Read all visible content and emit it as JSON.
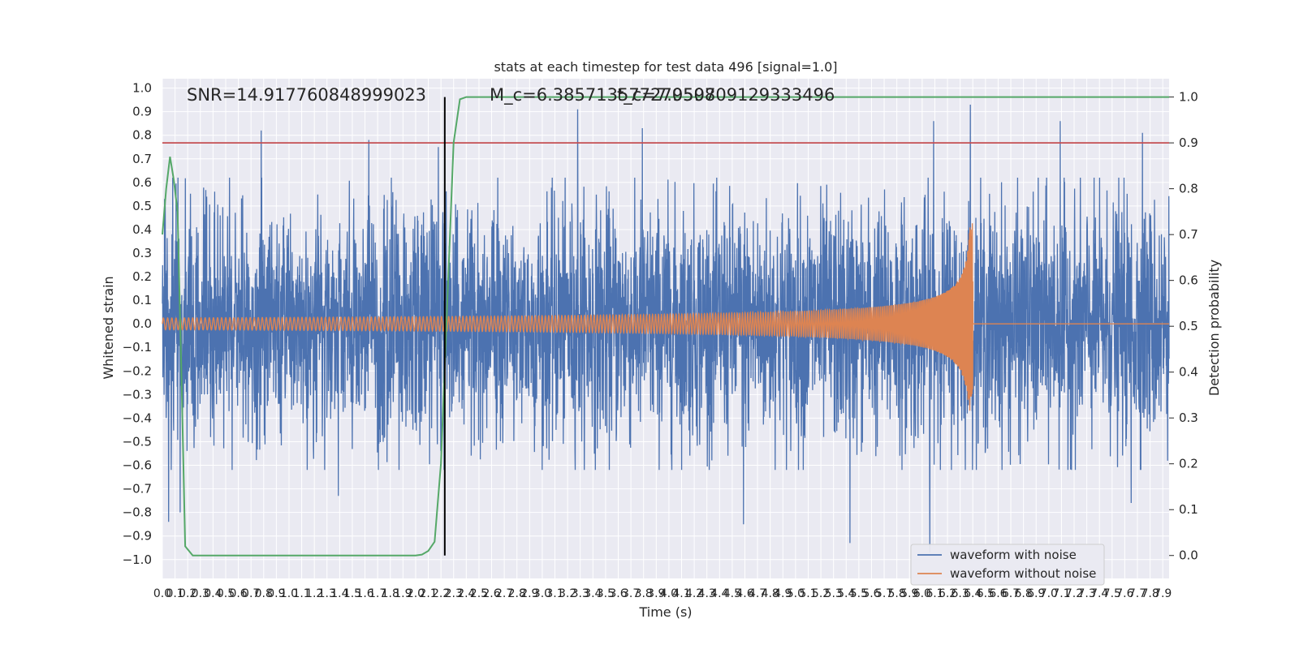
{
  "chart_data": {
    "type": "line",
    "title": "stats at each timestep for test data 496 [signal=1.0]",
    "xlabel": "Time (s)",
    "ylabel": "Whitened strain",
    "y2label": "Detection probability",
    "xlim": [
      0.0,
      7.95
    ],
    "ylim": [
      -1.08,
      1.04
    ],
    "y2lim": [
      -0.05,
      1.04
    ],
    "xticks": [
      0.0,
      0.1,
      0.2,
      0.3,
      0.4,
      0.5,
      0.6,
      0.7,
      0.8,
      0.9,
      1.0,
      1.1,
      1.2,
      1.3,
      1.4,
      1.5,
      1.6,
      1.7,
      1.8,
      1.9,
      2.0,
      2.1,
      2.2,
      2.3,
      2.4,
      2.5,
      2.6,
      2.7,
      2.8,
      2.9,
      3.0,
      3.1,
      3.2,
      3.3,
      3.4,
      3.5,
      3.6,
      3.7,
      3.8,
      3.9,
      4.0,
      4.1,
      4.2,
      4.3,
      4.4,
      4.5,
      4.6,
      4.7,
      4.8,
      4.9,
      5.0,
      5.1,
      5.2,
      5.3,
      5.4,
      5.5,
      5.6,
      5.7,
      5.8,
      5.9,
      6.0,
      6.1,
      6.2,
      6.3,
      6.4,
      6.5,
      6.6,
      6.7,
      6.8,
      6.9,
      7.0,
      7.1,
      7.2,
      7.3,
      7.4,
      7.5,
      7.6,
      7.7,
      7.8,
      7.9
    ],
    "yticks": [
      -1.0,
      -0.9,
      -0.8,
      -0.7,
      -0.6,
      -0.5,
      -0.4,
      -0.3,
      -0.2,
      -0.1,
      0.0,
      0.1,
      0.2,
      0.3,
      0.4,
      0.5,
      0.6,
      0.7,
      0.8,
      0.9,
      1.0
    ],
    "y2ticks": [
      0.0,
      0.1,
      0.2,
      0.3,
      0.4,
      0.5,
      0.6,
      0.7,
      0.8,
      0.9,
      1.0
    ],
    "grid": true,
    "legend_position": "lower-right",
    "annotations": {
      "snr": "SNR=14.917760848999023",
      "mc": "M_c=6.385713577270508",
      "tc": "t_c=7.959709129333496"
    },
    "threshold": 0.9,
    "merger_marker_x": 2.23,
    "series": [
      {
        "name": "waveform with noise",
        "color": "#4c72b0",
        "peaks": [
          {
            "x": 0.78,
            "y": 0.82
          },
          {
            "x": 1.63,
            "y": 0.78
          },
          {
            "x": 2.18,
            "y": 0.75
          },
          {
            "x": 3.28,
            "y": 0.91
          },
          {
            "x": 3.79,
            "y": 0.83
          },
          {
            "x": 6.09,
            "y": 0.86
          },
          {
            "x": 6.38,
            "y": 0.93
          },
          {
            "x": 7.09,
            "y": 0.86
          },
          {
            "x": 7.74,
            "y": 0.81
          },
          {
            "x": 0.05,
            "y": -0.84
          },
          {
            "x": 0.14,
            "y": -0.8
          },
          {
            "x": 1.39,
            "y": -0.73
          },
          {
            "x": 4.59,
            "y": -0.85
          },
          {
            "x": 5.43,
            "y": -0.93
          },
          {
            "x": 6.06,
            "y": -0.97
          },
          {
            "x": 7.65,
            "y": -0.76
          }
        ]
      },
      {
        "name": "waveform without noise",
        "color": "#dd8452",
        "t_start": 0.0,
        "t_merger": 6.4,
        "amp_start": 0.025,
        "amp_peak_pos": 0.44,
        "amp_peak_neg": -0.31,
        "freq_start_hz": 30
      },
      {
        "name": "detection probability",
        "color": "#55a868",
        "axis": "right",
        "points": [
          [
            0.0,
            0.7
          ],
          [
            0.03,
            0.8
          ],
          [
            0.06,
            0.87
          ],
          [
            0.09,
            0.82
          ],
          [
            0.12,
            0.75
          ],
          [
            0.15,
            0.4
          ],
          [
            0.18,
            0.02
          ],
          [
            0.24,
            0.0
          ],
          [
            2.0,
            0.0
          ],
          [
            2.05,
            0.002
          ],
          [
            2.1,
            0.01
          ],
          [
            2.15,
            0.03
          ],
          [
            2.2,
            0.2
          ],
          [
            2.25,
            0.55
          ],
          [
            2.3,
            0.9
          ],
          [
            2.35,
            0.995
          ],
          [
            2.4,
            1.0
          ],
          [
            7.95,
            1.0
          ]
        ]
      }
    ],
    "colors": {
      "background": "#eaeaf2",
      "grid": "#ffffff",
      "threshold": "#c44e52",
      "marker": "#000000"
    }
  }
}
